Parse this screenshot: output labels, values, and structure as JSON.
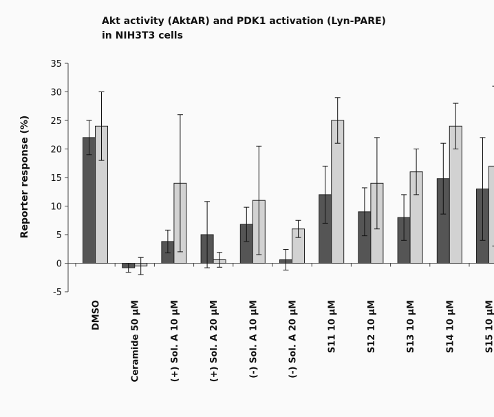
{
  "chart_data": {
    "type": "bar",
    "title_lines": [
      "Akt activity (AktAR) and PDK1 activation (Lyn-PARE)",
      "in NIH3T3 cells"
    ],
    "ylabel": "Reporter response (%)",
    "xlabel": "",
    "ylim": [
      -5,
      35
    ],
    "yticks": [
      -5,
      0,
      5,
      10,
      15,
      20,
      25,
      30,
      35
    ],
    "grid": false,
    "legend": "none",
    "categories": [
      "DMSO",
      "Ceramide 50 µM",
      "(+) Sol. A 10 µM",
      "(+) Sol. A 20 µM",
      "(-) Sol. A 10 µM",
      "(-) Sol. A 20 µM",
      "S11 10 µM",
      "S12 10 µM",
      "S13 10 µM",
      "S14 10 µM",
      "S15 10 µM"
    ],
    "series": [
      {
        "color": "#555555",
        "values": [
          22,
          -0.8,
          3.8,
          5,
          6.8,
          0.6,
          12,
          9,
          8,
          14.8,
          13
        ],
        "errors": [
          3,
          0.8,
          2,
          5.8,
          3,
          1.8,
          5,
          4.2,
          4,
          6.2,
          9
        ]
      },
      {
        "color": "#d2d2d2",
        "values": [
          24,
          -0.5,
          14,
          0.6,
          11,
          6,
          25,
          14,
          16,
          24,
          17
        ],
        "errors": [
          6,
          1.5,
          12,
          1.3,
          9.5,
          1.5,
          4,
          8,
          4,
          4,
          14
        ]
      }
    ]
  }
}
